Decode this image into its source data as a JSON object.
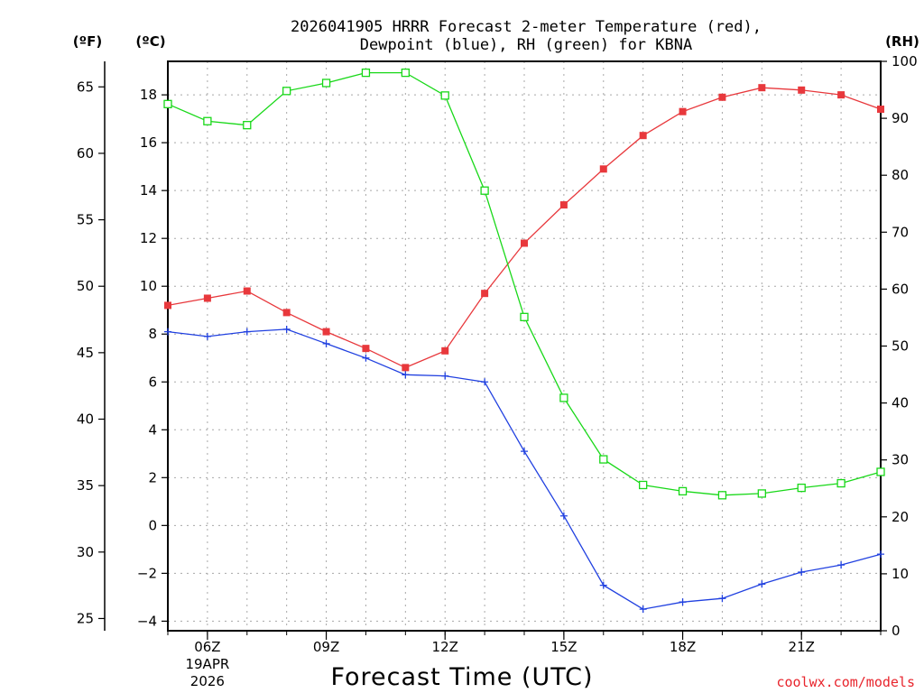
{
  "chart_data": {
    "type": "line",
    "title": "2026041905 HRRR Forecast 2-meter Temperature (red),",
    "subtitle": "Dewpoint (blue), RH (green) for KBNA",
    "xlabel": "Forecast Time (UTC)",
    "credit": "coolwx.com/models",
    "units": {
      "fahrenheit": "(ºF)",
      "celsius": "(ºC)",
      "rh": "(RH)"
    },
    "x": [
      5,
      6,
      7,
      8,
      9,
      10,
      11,
      12,
      13,
      14,
      15,
      16,
      17,
      18,
      19,
      20,
      21,
      22,
      23
    ],
    "xlim": [
      5,
      23
    ],
    "x_ticks": [
      {
        "x": 6,
        "label": "06Z",
        "date": "19APR",
        "year": "2026"
      },
      {
        "x": 9,
        "label": "09Z"
      },
      {
        "x": 12,
        "label": "12Z"
      },
      {
        "x": 15,
        "label": "15Z"
      },
      {
        "x": 18,
        "label": "18Z"
      },
      {
        "x": 21,
        "label": "21Z"
      }
    ],
    "celsius_axis": {
      "ylim": [
        -4.4,
        19.4
      ],
      "ticks": [
        -4,
        -2,
        0,
        2,
        4,
        6,
        8,
        10,
        12,
        14,
        16,
        18
      ],
      "tick_labels": [
        "−4",
        "−2",
        "0",
        "2",
        "4",
        "6",
        "8",
        "10",
        "12",
        "14",
        "16",
        "18"
      ]
    },
    "fahrenheit_axis": {
      "ticks": [
        25,
        30,
        35,
        40,
        45,
        50,
        55,
        60,
        65
      ],
      "tick_labels": [
        "25",
        "30",
        "35",
        "40",
        "45",
        "50",
        "55",
        "60",
        "65"
      ]
    },
    "rh_axis": {
      "ylim": [
        0,
        100
      ],
      "ticks": [
        0,
        10,
        20,
        30,
        40,
        50,
        60,
        70,
        80,
        90,
        100
      ],
      "tick_labels": [
        "0",
        "10",
        "20",
        "30",
        "40",
        "50",
        "60",
        "70",
        "80",
        "90",
        "100"
      ]
    },
    "series": [
      {
        "name": "2-meter Temperature",
        "axis": "celsius",
        "color": "#e8383c",
        "marker": "filled-square",
        "values": [
          9.2,
          9.5,
          9.8,
          8.9,
          8.1,
          7.4,
          6.6,
          7.3,
          9.7,
          11.8,
          13.4,
          14.9,
          16.3,
          17.3,
          17.9,
          18.3,
          18.2,
          18.0,
          17.4
        ]
      },
      {
        "name": "Dewpoint",
        "axis": "celsius",
        "color": "#2040e0",
        "marker": "plus",
        "values": [
          8.1,
          7.9,
          8.1,
          8.2,
          7.6,
          7.0,
          6.3,
          6.25,
          6.0,
          3.1,
          0.4,
          -2.5,
          -3.5,
          -3.2,
          -3.05,
          -2.45,
          -1.95,
          -1.65,
          -1.2
        ]
      },
      {
        "name": "RH",
        "axis": "rh",
        "color": "#18d818",
        "marker": "open-square",
        "values": [
          92.5,
          89.5,
          88.8,
          94.8,
          96.2,
          98.0,
          98.0,
          94.0,
          77.3,
          55.1,
          40.9,
          30.1,
          25.6,
          24.5,
          23.8,
          24.1,
          25.1,
          25.9,
          27.9
        ]
      }
    ]
  }
}
